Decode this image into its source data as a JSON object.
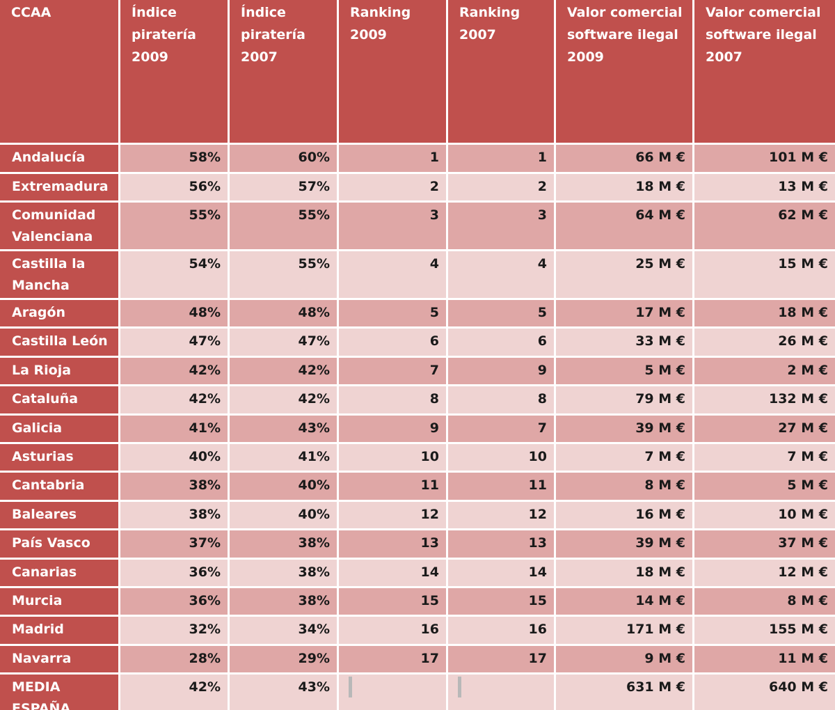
{
  "table": {
    "headers": [
      "CCAA",
      "Índice piratería 2009",
      "Índice piratería 2007",
      "Ranking 2009",
      "Ranking 2007",
      "Valor comercial software ilegal 2009",
      "Valor comercial software ilegal 2007"
    ],
    "rows": [
      [
        "Andalucía",
        "58%",
        "60%",
        "1",
        "1",
        "66 M €",
        "101 M €"
      ],
      [
        "Extremadura",
        "56%",
        "57%",
        "2",
        "2",
        "18 M €",
        "13 M €"
      ],
      [
        "Comunidad Valenciana",
        "55%",
        "55%",
        "3",
        "3",
        "64 M €",
        "62 M €"
      ],
      [
        "Castilla la Mancha",
        "54%",
        "55%",
        "4",
        "4",
        "25 M €",
        "15 M €"
      ],
      [
        "Aragón",
        "48%",
        "48%",
        "5",
        "5",
        "17 M €",
        "18 M €"
      ],
      [
        "Castilla León",
        "47%",
        "47%",
        "6",
        "6",
        "33 M €",
        "26 M €"
      ],
      [
        "La Rioja",
        "42%",
        "42%",
        "7",
        "9",
        "5 M €",
        "2 M €"
      ],
      [
        "Cataluña",
        "42%",
        "42%",
        "8",
        "8",
        "79 M €",
        "132 M €"
      ],
      [
        "Galicia",
        "41%",
        "43%",
        "9",
        "7",
        "39 M €",
        "27 M €"
      ],
      [
        "Asturias",
        "40%",
        "41%",
        "10",
        "10",
        "7 M €",
        "7 M €"
      ],
      [
        "Cantabria",
        "38%",
        "40%",
        "11",
        "11",
        "8 M €",
        "5 M €"
      ],
      [
        "Baleares",
        "38%",
        "40%",
        "12",
        "12",
        "16 M €",
        "10 M €"
      ],
      [
        "País Vasco",
        "37%",
        "38%",
        "13",
        "13",
        "39 M €",
        "37 M €"
      ],
      [
        "Canarias",
        "36%",
        "38%",
        "14",
        "14",
        "18 M €",
        "12 M €"
      ],
      [
        "Murcia",
        "36%",
        "38%",
        "15",
        "15",
        "14 M €",
        "8 M €"
      ],
      [
        "Madrid",
        "32%",
        "34%",
        "16",
        "16",
        "171 M €",
        "155 M €"
      ],
      [
        "Navarra",
        "28%",
        "29%",
        "17",
        "17",
        "9 M €",
        "11 M €"
      ],
      [
        "MEDIA ESPAÑA",
        "42%",
        "43%",
        null,
        null,
        "631 M €",
        "640 M €"
      ]
    ]
  }
}
